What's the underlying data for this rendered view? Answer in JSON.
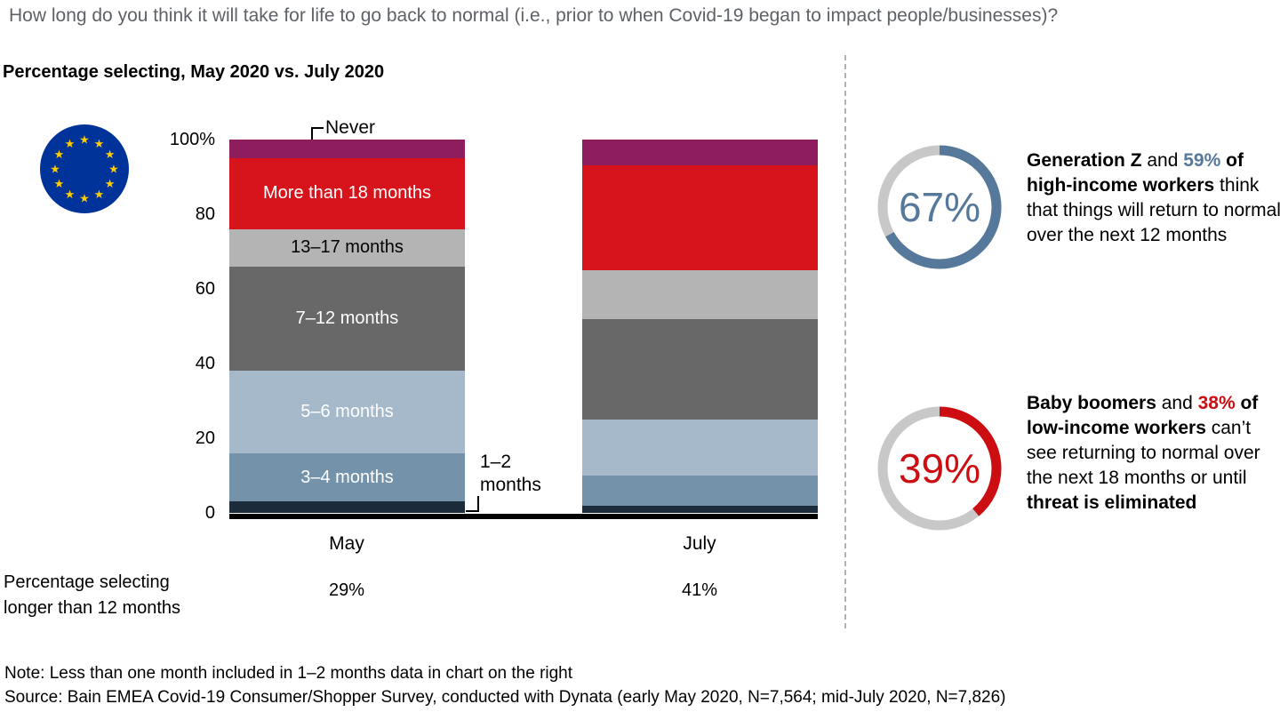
{
  "header": {
    "question": "How long do you think it will take for life to go back to normal (i.e., prior to when Covid-19 began to impact people/businesses)?",
    "subtitle": "Percentage selecting, May 2020 vs. July 2020"
  },
  "eu_flag": {
    "icon": "eu-flag-icon",
    "bg": "#003399",
    "star": "#ffcc00"
  },
  "chart_data": {
    "type": "bar",
    "stacked": true,
    "categories": [
      "May",
      "July"
    ],
    "ylim": [
      0,
      100
    ],
    "yticks": [
      "0",
      "20",
      "40",
      "60",
      "80",
      "100%"
    ],
    "series": [
      {
        "name": "1–2 months",
        "color": "#1c2b39",
        "values": [
          3,
          2
        ],
        "label": "outside",
        "label_text_color": "#000000"
      },
      {
        "name": "3–4 months",
        "color": "#7592ab",
        "values": [
          13,
          8
        ],
        "label": "inside-may",
        "label_text_color": "#ffffff"
      },
      {
        "name": "5–6 months",
        "color": "#a5b9ca",
        "values": [
          22,
          15
        ],
        "label": "inside-may",
        "label_text_color": "#ffffff"
      },
      {
        "name": "7–12 months",
        "color": "#686868",
        "values": [
          28,
          27
        ],
        "label": "inside-may",
        "label_text_color": "#ffffff"
      },
      {
        "name": "13–17 months",
        "color": "#b4b4b4",
        "values": [
          10,
          13
        ],
        "label": "inside-may",
        "label_text_color": "#000000"
      },
      {
        "name": "More than 18 months",
        "color": "#d7141b",
        "values": [
          19,
          28
        ],
        "label": "inside-may",
        "label_text_color": "#ffffff"
      },
      {
        "name": "Never",
        "color": "#8e1d5d",
        "values": [
          5,
          7
        ],
        "label": "outside",
        "label_text_color": "#000000"
      }
    ],
    "outside_labels": {
      "never": "Never",
      "one_two": "1–2 months"
    },
    "footer_row": {
      "label": "Percentage selecting longer than 12 months",
      "values": [
        "29%",
        "41%"
      ]
    }
  },
  "stats": [
    {
      "value": "67%",
      "pct": 67,
      "color": "#56789b",
      "ring_base": "#c8c8c8",
      "segments": [
        {
          "t": "Generation Z",
          "b": true
        },
        {
          "t": " and ",
          "b": false
        },
        {
          "t": "59% ",
          "b": true,
          "c": "#56789b"
        },
        {
          "t": "of high-income workers",
          "b": true
        },
        {
          "t": " think that things will return to normal over the next 12 months",
          "b": false
        }
      ]
    },
    {
      "value": "39%",
      "pct": 39,
      "color": "#cc0d12",
      "ring_base": "#c8c8c8",
      "segments": [
        {
          "t": "Baby boomers",
          "b": true
        },
        {
          "t": " and ",
          "b": false
        },
        {
          "t": "38% ",
          "b": true,
          "c": "#cc0d12"
        },
        {
          "t": "of low-income workers",
          "b": true
        },
        {
          "t": " can’t see returning to normal over the next 18 months or until ",
          "b": false
        },
        {
          "t": "threat is eliminated",
          "b": true
        }
      ]
    }
  ],
  "notes": {
    "note": "Note: Less than one month included in 1–2 months data in chart on the right",
    "source": "Source: Bain EMEA Covid-19 Consumer/Shopper Survey, conducted with Dynata (early May 2020, N=7,564; mid-July 2020, N=7,826)"
  }
}
